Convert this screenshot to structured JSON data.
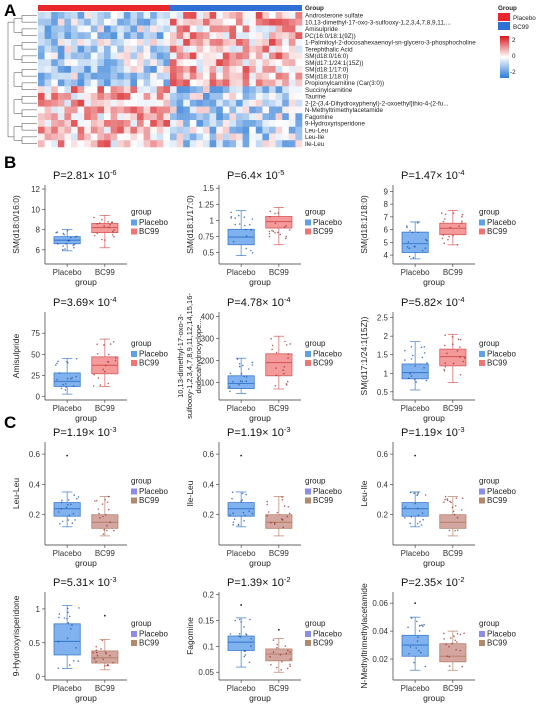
{
  "panels": {
    "A": "A",
    "B": "B",
    "C": "C"
  },
  "heatmap": {
    "group_title": "Group",
    "row_labels": [
      "Androsterone sulfate",
      "10,13-dimethyl-17-oxo-3-sulfooxy-1,2,3,4,7,8,9,11,...",
      "Amisulpride",
      "PC(16:0/18:1(9Z))",
      "1-Palmitoyl-2-docosahexaenoyl-sn-glycero-3-phosphocholine",
      "Terephthalic Acid",
      "SM(d18:0/16:0)",
      "SM(d17:1/24:1(15Z))",
      "SM(d18:1/17:0)",
      "SM(d18:1/18:0)",
      "Propionylcarnitine (Car(3:0))",
      "Succinylcarnitine",
      "Taurine",
      "2-[2-(3,4-Dihydroxyphenyl)-2-oxoethyl]thio-4-(2-fu...",
      "N-Methyltrimethylacetamide",
      "Fagomine",
      "9-Hydroxyrisperidone",
      "Leu-Leu",
      "Leu-Ile",
      "Ile-Leu"
    ],
    "legend_group_title": "Group",
    "legend_groups": [
      "Placebo",
      "BC99"
    ],
    "colorbar_ticks": [
      "2",
      "0",
      "-2"
    ],
    "colors": {
      "placebo": "#e8262b",
      "bc99": "#2f6fd6",
      "high": "#d7191c",
      "low": "#2c7bd6",
      "mid": "#ffffff"
    }
  },
  "chart_data": [
    {
      "type": "box",
      "panel": "B",
      "ylabel": "SM(d18:0/16:0)",
      "xlabel": "group",
      "categories": [
        "Placebo",
        "BC99"
      ],
      "legend_title": "group",
      "legend": [
        "Placebo",
        "BC99"
      ],
      "p_mantissa": "P=2.81",
      "p_exp": "-6",
      "ylim": [
        4.6,
        12.4
      ],
      "yticks": [
        6,
        8,
        10,
        12
      ],
      "boxes": [
        {
          "min": 5.9,
          "q1": 6.6,
          "median": 6.95,
          "q3": 7.3,
          "max": 8.0
        },
        {
          "min": 6.2,
          "q1": 7.7,
          "median": 8.2,
          "q3": 8.6,
          "max": 9.4
        }
      ]
    },
    {
      "type": "box",
      "panel": "B",
      "ylabel": "SM(d18:1/17:0)",
      "xlabel": "group",
      "categories": [
        "Placebo",
        "BC99"
      ],
      "legend_title": "group",
      "legend": [
        "Placebo",
        "BC99"
      ],
      "p_mantissa": "P=6.4",
      "p_exp": "-5",
      "ylim": [
        0.32,
        1.55
      ],
      "yticks": [
        0.5,
        0.75,
        1.0,
        1.25,
        1.5
      ],
      "boxes": [
        {
          "min": 0.45,
          "q1": 0.62,
          "median": 0.74,
          "q3": 0.86,
          "max": 1.15
        },
        {
          "min": 0.62,
          "q1": 0.88,
          "median": 0.98,
          "q3": 1.06,
          "max": 1.2
        }
      ]
    },
    {
      "type": "box",
      "panel": "B",
      "ylabel": "SM(d18:1/18:0)",
      "xlabel": "group",
      "categories": [
        "Placebo",
        "BC99"
      ],
      "legend_title": "group",
      "legend": [
        "Placebo",
        "BC99"
      ],
      "p_mantissa": "P=1.47",
      "p_exp": "-4",
      "ylim": [
        3.3,
        9.5
      ],
      "yticks": [
        4,
        5,
        6,
        7,
        8,
        9
      ],
      "boxes": [
        {
          "min": 3.7,
          "q1": 4.2,
          "median": 4.9,
          "q3": 5.8,
          "max": 6.6
        },
        {
          "min": 4.8,
          "q1": 5.6,
          "median": 6.1,
          "q3": 6.5,
          "max": 7.5
        }
      ]
    },
    {
      "type": "box",
      "panel": "B",
      "ylabel": "Amisulpride",
      "xlabel": "group",
      "categories": [
        "Placebo",
        "BC99"
      ],
      "legend_title": "group",
      "legend": [
        "Placebo",
        "BC99"
      ],
      "p_mantissa": "P=3.69",
      "p_exp": "-4",
      "ylim": [
        -4,
        100
      ],
      "yticks": [
        0,
        25,
        50,
        75
      ],
      "boxes": [
        {
          "min": 3,
          "q1": 12,
          "median": 18,
          "q3": 28,
          "max": 45
        },
        {
          "min": 12,
          "q1": 27,
          "median": 37,
          "q3": 47,
          "max": 68
        }
      ]
    },
    {
      "type": "box",
      "panel": "B",
      "ylabel": "10,13-dimethyl-17-oxo-3-sulfooxy-1,2,3,4,7,8,9,11,12,14,15,16-dodecahydrocyclope...",
      "ylabel_lines": [
        "10,13-dimethyl-17-oxo-3-",
        "sulfooxy-1,2,3,4,7,8,9,11,12,14,15,16-",
        "dodecahydrocyclope..."
      ],
      "xlabel": "group",
      "categories": [
        "Placebo",
        "BC99"
      ],
      "legend_title": "group",
      "legend": [
        "Placebo",
        "BC99"
      ],
      "p_mantissa": "P=4.78",
      "p_exp": "-4",
      "ylim": [
        20,
        420
      ],
      "yticks": [
        100,
        200,
        300,
        400
      ],
      "boxes": [
        {
          "min": 50,
          "q1": 72,
          "median": 95,
          "q3": 130,
          "max": 210
        },
        {
          "min": 70,
          "q1": 130,
          "median": 190,
          "q3": 230,
          "max": 310
        }
      ]
    },
    {
      "type": "box",
      "panel": "B",
      "ylabel": "SM(d17:1/24:1(15Z))",
      "xlabel": "group",
      "categories": [
        "Placebo",
        "BC99"
      ],
      "legend_title": "group",
      "legend": [
        "Placebo",
        "BC99"
      ],
      "p_mantissa": "P=5.82",
      "p_exp": "-4",
      "ylim": [
        0.28,
        2.65
      ],
      "yticks": [
        0.5,
        1.0,
        1.5,
        2.0,
        2.5
      ],
      "boxes": [
        {
          "min": 0.55,
          "q1": 0.85,
          "median": 1.02,
          "q3": 1.25,
          "max": 1.85
        },
        {
          "min": 0.75,
          "q1": 1.2,
          "median": 1.45,
          "q3": 1.65,
          "max": 2.05
        }
      ]
    },
    {
      "type": "box",
      "panel": "C",
      "ylabel": "Leu-Leu",
      "xlabel": "group",
      "categories": [
        "Placebo",
        "BC99"
      ],
      "legend_title": "group",
      "legend": [
        "Placebo",
        "BC99"
      ],
      "p_mantissa": "P=1.19",
      "p_exp": "-3",
      "ylim": [
        0.0,
        0.68
      ],
      "yticks": [
        0.2,
        0.4,
        0.6
      ],
      "boxes": [
        {
          "min": 0.12,
          "q1": 0.19,
          "median": 0.24,
          "q3": 0.28,
          "max": 0.35
        },
        {
          "min": 0.06,
          "q1": 0.11,
          "median": 0.15,
          "q3": 0.2,
          "max": 0.32
        }
      ],
      "outliers": [
        {
          "group": 0,
          "y": 0.59
        }
      ]
    },
    {
      "type": "box",
      "panel": "C",
      "ylabel": "Ile-Leu",
      "xlabel": "group",
      "categories": [
        "Placebo",
        "BC99"
      ],
      "legend_title": "group",
      "legend": [
        "Placebo",
        "BC99"
      ],
      "p_mantissa": "P=1.19",
      "p_exp": "-3",
      "ylim": [
        0.0,
        0.68
      ],
      "yticks": [
        0.2,
        0.4,
        0.6
      ],
      "boxes": [
        {
          "min": 0.12,
          "q1": 0.19,
          "median": 0.24,
          "q3": 0.28,
          "max": 0.35
        },
        {
          "min": 0.06,
          "q1": 0.11,
          "median": 0.15,
          "q3": 0.2,
          "max": 0.32
        }
      ],
      "outliers": [
        {
          "group": 0,
          "y": 0.59
        }
      ]
    },
    {
      "type": "box",
      "panel": "C",
      "ylabel": "Leu-Ile",
      "xlabel": "group",
      "categories": [
        "Placebo",
        "BC99"
      ],
      "legend_title": "group",
      "legend": [
        "Placebo",
        "BC99"
      ],
      "p_mantissa": "P=1.19",
      "p_exp": "-3",
      "ylim": [
        0.0,
        0.68
      ],
      "yticks": [
        0.2,
        0.4,
        0.6
      ],
      "boxes": [
        {
          "min": 0.12,
          "q1": 0.19,
          "median": 0.24,
          "q3": 0.28,
          "max": 0.35
        },
        {
          "min": 0.06,
          "q1": 0.11,
          "median": 0.15,
          "q3": 0.2,
          "max": 0.32
        }
      ],
      "outliers": [
        {
          "group": 0,
          "y": 0.59
        }
      ]
    },
    {
      "type": "box",
      "panel": "C",
      "ylabel": "9-Hydroxyrisperidone",
      "xlabel": "group",
      "categories": [
        "Placebo",
        "BC99"
      ],
      "legend_title": "group",
      "legend": [
        "Placebo",
        "BC99"
      ],
      "p_mantissa": "P=5.31",
      "p_exp": "-3",
      "ylim": [
        -0.05,
        1.25
      ],
      "yticks": [
        0.0,
        0.5,
        1.0
      ],
      "boxes": [
        {
          "min": 0.12,
          "q1": 0.32,
          "median": 0.52,
          "q3": 0.78,
          "max": 1.05
        },
        {
          "min": 0.1,
          "q1": 0.2,
          "median": 0.28,
          "q3": 0.38,
          "max": 0.55
        }
      ],
      "outliers": [
        {
          "group": 1,
          "y": 0.9
        }
      ]
    },
    {
      "type": "box",
      "panel": "C",
      "ylabel": "Fagomine",
      "xlabel": "group",
      "categories": [
        "Placebo",
        "BC99"
      ],
      "legend_title": "group",
      "legend": [
        "Placebo",
        "BC99"
      ],
      "p_mantissa": "P=1.39",
      "p_exp": "-2",
      "ylim": [
        0.035,
        0.205
      ],
      "yticks": [
        0.05,
        0.1,
        0.15,
        0.2
      ],
      "boxes": [
        {
          "min": 0.06,
          "q1": 0.092,
          "median": 0.108,
          "q3": 0.12,
          "max": 0.155
        },
        {
          "min": 0.05,
          "q1": 0.072,
          "median": 0.085,
          "q3": 0.095,
          "max": 0.115
        }
      ],
      "outliers": [
        {
          "group": 0,
          "y": 0.18
        },
        {
          "group": 1,
          "y": 0.132
        }
      ]
    },
    {
      "type": "box",
      "panel": "C",
      "ylabel": "N-Methyltrimethylacetamide",
      "xlabel": "group",
      "categories": [
        "Placebo",
        "BC99"
      ],
      "legend_title": "group",
      "legend": [
        "Placebo",
        "BC99"
      ],
      "p_mantissa": "P=2.35",
      "p_exp": "-2",
      "ylim": [
        0.005,
        0.068
      ],
      "yticks": [
        0.02,
        0.04,
        0.06
      ],
      "boxes": [
        {
          "min": 0.012,
          "q1": 0.022,
          "median": 0.03,
          "q3": 0.037,
          "max": 0.05
        },
        {
          "min": 0.012,
          "q1": 0.018,
          "median": 0.022,
          "q3": 0.031,
          "max": 0.04
        }
      ],
      "outliers": [
        {
          "group": 0,
          "y": 0.06
        }
      ]
    }
  ],
  "styles": {
    "B": {
      "placebo_fill": "#7fb2ee",
      "placebo_edge": "#3b7bd0",
      "bc99_fill": "#f49a9a",
      "bc99_edge": "#d85a5a",
      "leg_placebo": "#5fa0e8",
      "leg_bc99": "#f07474"
    },
    "C": {
      "placebo_fill": "#7fb2ee",
      "placebo_edge": "#3b7bd0",
      "bc99_fill": "#d4a6a0",
      "bc99_edge": "#b8826c",
      "leg_placebo": "#8c8de6",
      "leg_bc99": "#b08a6c"
    }
  }
}
